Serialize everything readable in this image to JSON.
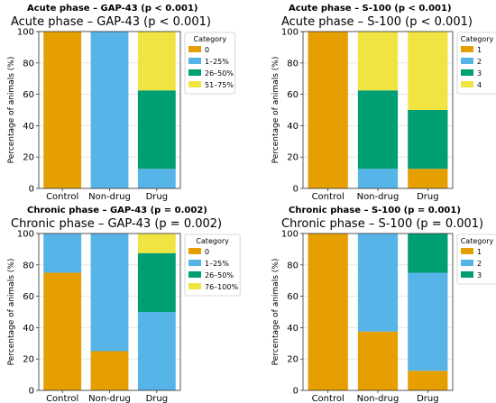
{
  "colors": {
    "orange": "#E69F00",
    "blue": "#56B4E9",
    "green": "#009E73",
    "yellow": "#F0E442",
    "grid": "#e6e6e6",
    "axis": "#333333"
  },
  "chart_data": [
    {
      "type": "bar",
      "stacked": true,
      "suptitle": "Acute phase – GAP-43 (p < 0.001)",
      "title": "Acute phase – GAP-43 (p < 0.001)",
      "xlabel": "",
      "ylabel": "Percentage of animals (%)",
      "ylim": [
        0,
        100
      ],
      "yticks": [
        0,
        20,
        40,
        60,
        80,
        100
      ],
      "grid": true,
      "legend_title": "Category",
      "legend_position": "top-right",
      "categories": [
        "Control",
        "Non-drug",
        "Drug"
      ],
      "series": [
        {
          "name": "0",
          "color": "#E69F00",
          "values": [
            100,
            0,
            0
          ]
        },
        {
          "name": "1–25%",
          "color": "#56B4E9",
          "values": [
            0,
            100,
            12.5
          ]
        },
        {
          "name": "26–50%",
          "color": "#009E73",
          "values": [
            0,
            0,
            50
          ]
        },
        {
          "name": "51–75%",
          "color": "#F0E442",
          "values": [
            0,
            0,
            37.5
          ]
        }
      ]
    },
    {
      "type": "bar",
      "stacked": true,
      "suptitle": "Acute phase – S-100 (p < 0.001)",
      "title": "Acute phase – S-100 (p < 0.001)",
      "xlabel": "",
      "ylabel": "Percentage of animals (%)",
      "ylim": [
        0,
        100
      ],
      "yticks": [
        0,
        20,
        40,
        60,
        80,
        100
      ],
      "grid": true,
      "legend_title": "Category",
      "legend_position": "top-right",
      "categories": [
        "Control",
        "Non-drug",
        "Drug"
      ],
      "series": [
        {
          "name": "1",
          "color": "#E69F00",
          "values": [
            100,
            0,
            12.5
          ]
        },
        {
          "name": "2",
          "color": "#56B4E9",
          "values": [
            0,
            12.5,
            0
          ]
        },
        {
          "name": "3",
          "color": "#009E73",
          "values": [
            0,
            50,
            37.5
          ]
        },
        {
          "name": "4",
          "color": "#F0E442",
          "values": [
            0,
            37.5,
            50
          ]
        }
      ]
    },
    {
      "type": "bar",
      "stacked": true,
      "suptitle": "Chronic phase – GAP-43 (p = 0.002)",
      "title": "Chronic phase – GAP-43 (p = 0.002)",
      "xlabel": "",
      "ylabel": "Percentage of animals (%)",
      "ylim": [
        0,
        100
      ],
      "yticks": [
        0,
        20,
        40,
        60,
        80,
        100
      ],
      "grid": true,
      "legend_title": "Category",
      "legend_position": "top-right",
      "categories": [
        "Control",
        "Non-drug",
        "Drug"
      ],
      "series": [
        {
          "name": "0",
          "color": "#E69F00",
          "values": [
            75,
            25,
            0
          ]
        },
        {
          "name": "1–25%",
          "color": "#56B4E9",
          "values": [
            25,
            75,
            50
          ]
        },
        {
          "name": "26–50%",
          "color": "#009E73",
          "values": [
            0,
            0,
            37.5
          ]
        },
        {
          "name": "76–100%",
          "color": "#F0E442",
          "values": [
            0,
            0,
            12.5
          ]
        }
      ]
    },
    {
      "type": "bar",
      "stacked": true,
      "suptitle": "Chronic phase – S-100 (p = 0.001)",
      "title": "Chronic phase – S-100 (p = 0.001)",
      "xlabel": "",
      "ylabel": "Percentage of animals (%)",
      "ylim": [
        0,
        100
      ],
      "yticks": [
        0,
        20,
        40,
        60,
        80,
        100
      ],
      "grid": true,
      "legend_title": "Category",
      "legend_position": "top-right",
      "categories": [
        "Control",
        "Non-drug",
        "Drug"
      ],
      "series": [
        {
          "name": "1",
          "color": "#E69F00",
          "values": [
            100,
            37.5,
            12.5
          ]
        },
        {
          "name": "2",
          "color": "#56B4E9",
          "values": [
            0,
            62.5,
            62.5
          ]
        },
        {
          "name": "3",
          "color": "#009E73",
          "values": [
            0,
            0,
            25
          ]
        }
      ]
    }
  ]
}
